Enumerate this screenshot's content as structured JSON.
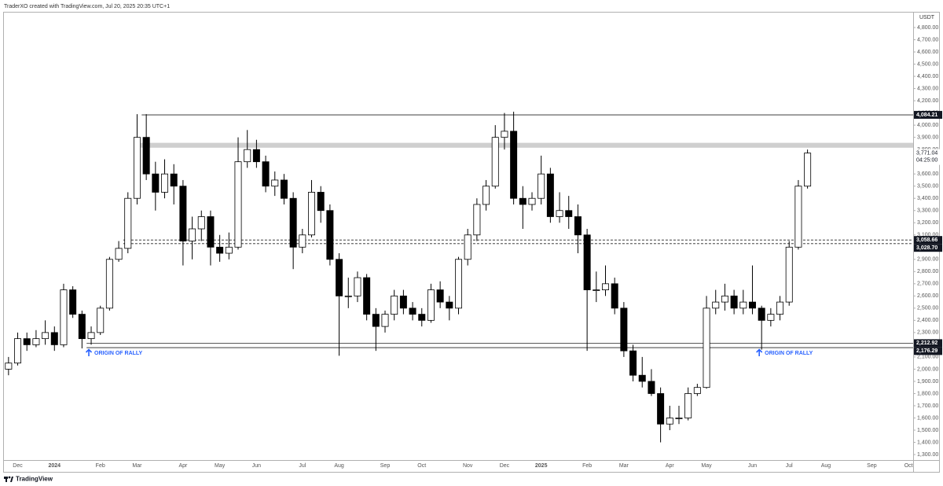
{
  "chart_data": {
    "type": "candlestick",
    "header": "TraderXO created with TradingView.com, Jul 20, 2025 20:35 UTC+1",
    "currency": "USDT",
    "footer": "TradingView",
    "categories": [
      null,
      "Dec",
      null,
      null,
      null,
      "2024",
      null,
      null,
      null,
      null,
      "Feb",
      null,
      null,
      null,
      "Mar",
      null,
      null,
      null,
      null,
      "Apr",
      null,
      null,
      null,
      "May",
      null,
      null,
      null,
      "Jun",
      null,
      null,
      null,
      null,
      "Jul",
      null,
      null,
      null,
      "Aug",
      null,
      null,
      null,
      null,
      "Sep",
      null,
      null,
      null,
      "Oct",
      null,
      null,
      null,
      null,
      "Nov",
      null,
      null,
      null,
      "Dec",
      null,
      null,
      null,
      "2025",
      null,
      null,
      null,
      null,
      "Feb",
      null,
      null,
      null,
      "Mar",
      null,
      null,
      null,
      null,
      "Apr",
      null,
      null,
      null,
      "May",
      null,
      null,
      null,
      null,
      "Jun",
      null,
      null,
      null,
      "Jul",
      null,
      null,
      null,
      "Aug",
      null,
      null,
      null,
      null,
      "Sep",
      null,
      null,
      null,
      "Oct"
    ],
    "open": [
      2000,
      2050,
      2250,
      2200,
      2250,
      2300,
      2200,
      2650,
      2450,
      2250,
      2300,
      2500,
      2900,
      2990,
      3400,
      3900,
      3600,
      3450,
      3600,
      3500,
      3050,
      3150,
      3250,
      3000,
      2950,
      3000,
      3700,
      3800,
      3700,
      3500,
      3550,
      3400,
      3000,
      3100,
      3450,
      3300,
      2900,
      2600,
      2600,
      2750,
      2450,
      2350,
      2450,
      2600,
      2500,
      2450,
      2400,
      2650,
      2550,
      2500,
      2900,
      3100,
      3350,
      3500,
      3900,
      3950,
      3400,
      3350,
      3400,
      3600,
      3250,
      3300,
      3250,
      3100,
      2650,
      2650,
      2700,
      2500,
      2150,
      1950,
      1900,
      1800,
      1550,
      1600,
      1600,
      1800,
      1850,
      2500,
      2550,
      2600,
      2500,
      2550,
      2500,
      2400,
      2450,
      2550,
      3000,
      3500,
      null,
      null,
      null,
      null,
      null,
      null,
      null,
      null,
      null,
      null,
      null
    ],
    "high": [
      2100,
      2300,
      2300,
      2320,
      2400,
      2350,
      2700,
      2680,
      2480,
      2350,
      2520,
      2920,
      3050,
      3450,
      4090,
      4090,
      3700,
      3720,
      3680,
      3550,
      3250,
      3300,
      3300,
      3100,
      3120,
      3900,
      3960,
      3880,
      3750,
      3620,
      3600,
      3450,
      3150,
      3550,
      3500,
      3350,
      2950,
      2750,
      2800,
      2780,
      2500,
      2480,
      2650,
      2650,
      2550,
      2500,
      2700,
      2720,
      2600,
      2920,
      3150,
      3400,
      3550,
      4000,
      4100,
      4110,
      3500,
      3450,
      3750,
      3650,
      3450,
      3420,
      3350,
      3150,
      2800,
      2850,
      2750,
      2550,
      2200,
      2100,
      2000,
      1850,
      1700,
      1700,
      1850,
      1880,
      2600,
      2650,
      2700,
      2650,
      2650,
      2850,
      2520,
      2500,
      2600,
      3050,
      3550,
      3800,
      null,
      null,
      null,
      null,
      null,
      null,
      null,
      null,
      null,
      null,
      null
    ],
    "low": [
      1950,
      2030,
      2150,
      2180,
      2200,
      2150,
      2180,
      2420,
      2170,
      2200,
      2280,
      2480,
      2880,
      2950,
      3350,
      3550,
      3300,
      3400,
      3350,
      2850,
      2900,
      3050,
      2850,
      2880,
      2900,
      2980,
      3650,
      3650,
      3450,
      3420,
      3350,
      2820,
      2950,
      3080,
      3200,
      2850,
      2110,
      2500,
      2550,
      2400,
      2150,
      2300,
      2400,
      2450,
      2400,
      2350,
      2380,
      2500,
      2400,
      2450,
      2850,
      3050,
      3300,
      3480,
      3800,
      3350,
      3150,
      3300,
      3350,
      3200,
      3200,
      3150,
      2950,
      2150,
      2550,
      2600,
      2450,
      2100,
      1900,
      1850,
      1780,
      1400,
      1500,
      1550,
      1580,
      1780,
      1840,
      2450,
      2480,
      2450,
      2450,
      2450,
      2160,
      2350,
      2400,
      2520,
      2980,
      3480,
      null,
      null,
      null,
      null,
      null,
      null,
      null,
      null,
      null,
      null,
      null
    ],
    "close": [
      2050,
      2250,
      2200,
      2250,
      2300,
      2200,
      2650,
      2450,
      2250,
      2300,
      2500,
      2900,
      2990,
      3400,
      3900,
      3600,
      3450,
      3600,
      3500,
      3050,
      3150,
      3250,
      3000,
      2950,
      3000,
      3700,
      3800,
      3700,
      3500,
      3550,
      3400,
      3000,
      3100,
      3450,
      3300,
      2900,
      2600,
      2600,
      2750,
      2450,
      2350,
      2450,
      2600,
      2500,
      2450,
      2400,
      2650,
      2550,
      2500,
      2900,
      3100,
      3350,
      3500,
      3900,
      3950,
      3400,
      3350,
      3400,
      3600,
      3250,
      3300,
      3250,
      3100,
      2650,
      2650,
      2700,
      2500,
      2150,
      1950,
      1900,
      1800,
      1550,
      1600,
      1600,
      1800,
      1850,
      2500,
      2550,
      2600,
      2500,
      2550,
      2500,
      2400,
      2450,
      2550,
      3000,
      3500,
      3771.04,
      null,
      null,
      null,
      null,
      null,
      null,
      null,
      null,
      null,
      null,
      null
    ],
    "ylim": [
      1255,
      4929
    ],
    "yticks": [
      {
        "value": 1300,
        "label": "1,300.00"
      },
      {
        "value": 1400,
        "label": "1,400.00"
      },
      {
        "value": 1500,
        "label": "1,500.00"
      },
      {
        "value": 1600,
        "label": "1,600.00"
      },
      {
        "value": 1700,
        "label": "1,700.00"
      },
      {
        "value": 1800,
        "label": "1,800.00"
      },
      {
        "value": 1900,
        "label": "1,900.00"
      },
      {
        "value": 2000,
        "label": "2,000.00"
      },
      {
        "value": 2100,
        "label": "2,100.00"
      },
      {
        "value": 2200,
        "label": "2,200.00"
      },
      {
        "value": 2300,
        "label": "2,300.00"
      },
      {
        "value": 2400,
        "label": "2,400.00"
      },
      {
        "value": 2500,
        "label": "2,500.00"
      },
      {
        "value": 2600,
        "label": "2,600.00"
      },
      {
        "value": 2700,
        "label": "2,700.00"
      },
      {
        "value": 2800,
        "label": "2,800.00"
      },
      {
        "value": 2900,
        "label": "2,900.00"
      },
      {
        "value": 3000,
        "label": "3,000.00"
      },
      {
        "value": 3100,
        "label": "3,100.00"
      },
      {
        "value": 3200,
        "label": "3,200.00"
      },
      {
        "value": 3300,
        "label": "3,300.00"
      },
      {
        "value": 3400,
        "label": "3,400.00"
      },
      {
        "value": 3500,
        "label": "3,500.00"
      },
      {
        "value": 3600,
        "label": "3,600.00"
      },
      {
        "value": 3700,
        "label": "3,700.00"
      },
      {
        "value": 3800,
        "label": "3,800.00"
      },
      {
        "value": 3900,
        "label": "3,900.00"
      },
      {
        "value": 4000,
        "label": "4,000.00"
      },
      {
        "value": 4100,
        "label": "4,100.00"
      },
      {
        "value": 4200,
        "label": "4,200.00"
      },
      {
        "value": 4300,
        "label": "4,300.00"
      },
      {
        "value": 4400,
        "label": "4,400.00"
      },
      {
        "value": 4500,
        "label": "4,500.00"
      },
      {
        "value": 4600,
        "label": "4,600.00"
      },
      {
        "value": 4700,
        "label": "4,700.00"
      },
      {
        "value": 4800,
        "label": "4,800.00"
      }
    ],
    "grid": false,
    "levels": [
      {
        "value": 4084.21,
        "label": "4,084.21",
        "style": "solid"
      },
      {
        "value": 3058.66,
        "label": "3,058.66",
        "style": "dashed"
      },
      {
        "value": 3028.7,
        "label": "3,028.70",
        "style": "dashed"
      },
      {
        "value": 2212.92,
        "label": "2,212.92",
        "style": "solid"
      },
      {
        "value": 2176.29,
        "label": "2,176.29",
        "style": "solid"
      }
    ],
    "zone": [
      3815,
      3855
    ],
    "last_price": {
      "value": 3771.04,
      "label": "3,771.04"
    },
    "countdown": "04:25:00",
    "annotations": [
      "ORIGIN OF RALLY",
      "ORIGIN OF RALLY"
    ],
    "annotation_color": "#2962ff"
  }
}
